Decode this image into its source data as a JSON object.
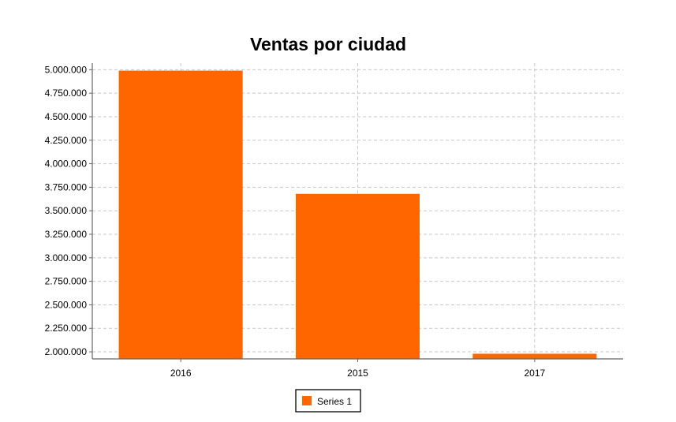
{
  "chart_data": {
    "type": "bar",
    "title": "Ventas por ciudad",
    "xlabel": "",
    "ylabel": "",
    "categories": [
      "2016",
      "2015",
      "2017"
    ],
    "series": [
      {
        "name": "Series 1",
        "values": [
          4990000,
          3680000,
          1980000
        ],
        "color": "#ff6600"
      }
    ],
    "ylim": [
      1925000,
      5070000
    ],
    "yticks": [
      2000000,
      2250000,
      2500000,
      2750000,
      3000000,
      3250000,
      3500000,
      3750000,
      4000000,
      4250000,
      4500000,
      4750000,
      5000000
    ],
    "ytick_labels": [
      "2.000.000",
      "2.250.000",
      "2.500.000",
      "2.750.000",
      "3.000.000",
      "3.250.000",
      "3.500.000",
      "3.750.000",
      "4.000.000",
      "4.250.000",
      "4.500.000",
      "4.750.000",
      "5.000.000"
    ],
    "grid": true,
    "legend_position": "bottom-center"
  }
}
